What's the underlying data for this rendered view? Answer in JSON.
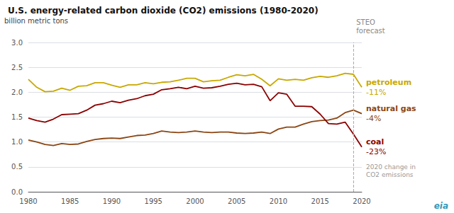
{
  "chart_data": {
    "type": "line",
    "title": "U.S. energy-related carbon dioxide (CO2) emissions (1980-2020)",
    "y_label": "billion metric tons",
    "x": [
      1980,
      1981,
      1982,
      1983,
      1984,
      1985,
      1986,
      1987,
      1988,
      1989,
      1990,
      1991,
      1992,
      1993,
      1994,
      1995,
      1996,
      1997,
      1998,
      1999,
      2000,
      2001,
      2002,
      2003,
      2004,
      2005,
      2006,
      2007,
      2008,
      2009,
      2010,
      2011,
      2012,
      2013,
      2014,
      2015,
      2016,
      2017,
      2018,
      2019,
      2020
    ],
    "series": [
      {
        "name": "petroleum",
        "color": "#c8a800",
        "end_label": "-11%",
        "values": [
          2.26,
          2.1,
          2.01,
          2.02,
          2.08,
          2.04,
          2.12,
          2.13,
          2.19,
          2.19,
          2.14,
          2.1,
          2.15,
          2.15,
          2.19,
          2.17,
          2.2,
          2.21,
          2.24,
          2.28,
          2.28,
          2.21,
          2.23,
          2.24,
          2.3,
          2.35,
          2.33,
          2.36,
          2.26,
          2.13,
          2.27,
          2.24,
          2.26,
          2.24,
          2.29,
          2.32,
          2.3,
          2.33,
          2.38,
          2.36,
          2.1
        ]
      },
      {
        "name": "natural gas",
        "color": "#8B4513",
        "end_label": "-4%",
        "values": [
          1.04,
          1.0,
          0.95,
          0.93,
          0.97,
          0.95,
          0.96,
          1.01,
          1.05,
          1.07,
          1.08,
          1.07,
          1.1,
          1.13,
          1.14,
          1.17,
          1.22,
          1.2,
          1.19,
          1.2,
          1.22,
          1.2,
          1.19,
          1.2,
          1.2,
          1.18,
          1.17,
          1.18,
          1.2,
          1.17,
          1.26,
          1.3,
          1.3,
          1.36,
          1.41,
          1.43,
          1.44,
          1.48,
          1.59,
          1.64,
          1.57
        ]
      },
      {
        "name": "coal",
        "color": "#8B0000",
        "end_label": "-23%",
        "values": [
          1.48,
          1.43,
          1.4,
          1.46,
          1.55,
          1.56,
          1.57,
          1.64,
          1.74,
          1.77,
          1.82,
          1.79,
          1.84,
          1.87,
          1.93,
          1.96,
          2.05,
          2.07,
          2.1,
          2.07,
          2.12,
          2.08,
          2.09,
          2.12,
          2.16,
          2.18,
          2.15,
          2.16,
          2.11,
          1.83,
          1.99,
          1.96,
          1.72,
          1.72,
          1.71,
          1.56,
          1.37,
          1.36,
          1.4,
          1.16,
          0.9
        ]
      }
    ],
    "xlim": [
      1980,
      2020
    ],
    "xticks": [
      1980,
      1985,
      1990,
      1995,
      2000,
      2005,
      2010,
      2015,
      2020
    ],
    "ylim": [
      0.0,
      3.0
    ],
    "yticks": [
      {
        "value": 0,
        "label": "0.0"
      },
      0.5,
      {
        "value": 1,
        "label": "1.0"
      },
      1.5,
      {
        "value": 2,
        "label": "2.0"
      },
      2.5,
      {
        "value": 3,
        "label": "3.0"
      }
    ],
    "grid": true,
    "vline": {
      "x": 2019,
      "label": [
        "STEO",
        "forecast"
      ]
    },
    "note": [
      "2020 change in",
      "CO2 emissions"
    ],
    "logo": "eia"
  }
}
